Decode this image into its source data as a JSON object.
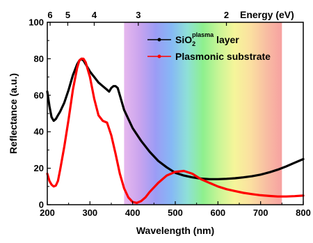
{
  "chart_data": {
    "type": "line",
    "xlabel": "Wavelength (nm)",
    "ylabel": "Reflectance (a.u.)",
    "top_axis_label": "Energy (eV)",
    "xlim": [
      200,
      800
    ],
    "ylim": [
      0,
      100
    ],
    "x_ticks": [
      200,
      300,
      400,
      500,
      600,
      700,
      800
    ],
    "y_ticks": [
      0,
      20,
      40,
      60,
      80,
      100
    ],
    "top_ticks": [
      {
        "label": "6",
        "wavelength": 206.6
      },
      {
        "label": "5",
        "wavelength": 248.0
      },
      {
        "label": "4",
        "wavelength": 310.0
      },
      {
        "label": "3",
        "wavelength": 413.3
      },
      {
        "label": "2",
        "wavelength": 619.9
      }
    ],
    "spectrum_band": {
      "from": 380,
      "to": 750
    },
    "legend": {
      "placement": "top-right",
      "items": [
        {
          "main": "SiO",
          "sub": "2",
          "sup": "plasma",
          "rest": " layer",
          "color": "#000000"
        },
        {
          "main": "Plasmonic substrate",
          "sub": "",
          "sup": "",
          "rest": "",
          "color": "#ff0000"
        }
      ]
    },
    "series": [
      {
        "color": "#000000",
        "x": [
          200,
          205,
          210,
          215,
          220,
          225,
          230,
          240,
          250,
          255,
          260,
          265,
          270,
          275,
          280,
          285,
          290,
          295,
          300,
          310,
          320,
          330,
          340,
          345,
          350,
          355,
          360,
          365,
          370,
          380,
          400,
          420,
          440,
          460,
          480,
          500,
          520,
          540,
          560,
          580,
          600,
          620,
          640,
          660,
          680,
          700,
          720,
          740,
          760,
          780,
          800
        ],
        "y": [
          62,
          54,
          48,
          46,
          47,
          49,
          51,
          56,
          63,
          67,
          71,
          74,
          77,
          79,
          80,
          79,
          77,
          75,
          73,
          70,
          67,
          65,
          63,
          62,
          64,
          65,
          65,
          64,
          60,
          52,
          42,
          35,
          29,
          24,
          20.5,
          17.5,
          16,
          15,
          14.3,
          14,
          14,
          14.2,
          14.5,
          15,
          15.6,
          16.5,
          17.7,
          19.2,
          21,
          23,
          25
        ]
      },
      {
        "color": "#ff0000",
        "x": [
          200,
          205,
          210,
          215,
          220,
          225,
          230,
          240,
          250,
          260,
          270,
          275,
          280,
          285,
          290,
          300,
          310,
          320,
          330,
          340,
          350,
          360,
          370,
          380,
          390,
          400,
          410,
          420,
          430,
          440,
          460,
          480,
          500,
          520,
          540,
          560,
          580,
          600,
          620,
          640,
          660,
          680,
          700,
          720,
          740,
          760,
          780,
          800
        ],
        "y": [
          17,
          13,
          11,
          10,
          10.5,
          13,
          19,
          32,
          47,
          63,
          75,
          79,
          80,
          80,
          78,
          70,
          58,
          49,
          46,
          45,
          38,
          28,
          17,
          9,
          4,
          1.5,
          1,
          2,
          4,
          7,
          12,
          16,
          18,
          18.5,
          17,
          14,
          12,
          10,
          8.5,
          7.5,
          6.5,
          5.8,
          5.2,
          4.8,
          4.5,
          4.5,
          4.7,
          5
        ]
      }
    ]
  }
}
